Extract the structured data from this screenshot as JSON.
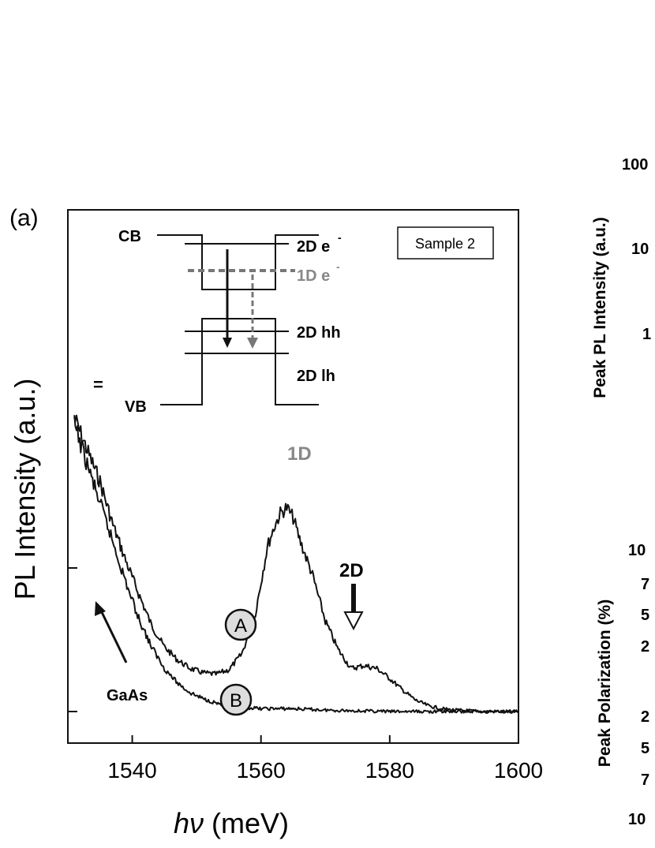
{
  "panel_label": "(a)",
  "sample_label": "Sample 2",
  "chart_data": {
    "type": "line",
    "xlabel_italic": "hν",
    "xlabel_unit": " (meV)",
    "ylabel": "PL Intensity (a.u.)",
    "xlim": [
      1530,
      1600
    ],
    "xticks": [
      "1540",
      "1560",
      "1580",
      "1600"
    ],
    "ytick_values": [
      0,
      1
    ],
    "grid": false,
    "series": [
      {
        "name": "A",
        "x": [
          1531,
          1533,
          1535,
          1537,
          1539,
          1541,
          1543,
          1545,
          1547,
          1549,
          1551,
          1553,
          1555,
          1557,
          1559,
          1560,
          1561,
          1562,
          1563,
          1564,
          1565,
          1566,
          1568,
          1570,
          1572,
          1574,
          1576,
          1578,
          1580,
          1582,
          1584,
          1586,
          1588,
          1590,
          1595,
          1600
        ],
        "y": [
          2.05,
          1.82,
          1.6,
          1.3,
          1.05,
          0.82,
          0.6,
          0.45,
          0.36,
          0.3,
          0.27,
          0.26,
          0.29,
          0.4,
          0.65,
          0.9,
          1.15,
          1.28,
          1.38,
          1.42,
          1.35,
          1.2,
          0.95,
          0.63,
          0.43,
          0.3,
          0.32,
          0.3,
          0.23,
          0.15,
          0.08,
          0.04,
          0.02,
          0.01,
          0.0,
          0.0
        ]
      },
      {
        "name": "B",
        "x": [
          1531,
          1533,
          1535,
          1537,
          1539,
          1541,
          1543,
          1545,
          1547,
          1549,
          1551,
          1553,
          1555,
          1557,
          1560,
          1565,
          1570,
          1580,
          1590,
          1600
        ],
        "y": [
          2.0,
          1.72,
          1.45,
          1.18,
          0.9,
          0.65,
          0.45,
          0.3,
          0.2,
          0.13,
          0.09,
          0.06,
          0.04,
          0.03,
          0.02,
          0.02,
          0.01,
          0.0,
          0.0,
          0.0
        ]
      }
    ],
    "annotations": {
      "peak_1d": "1D",
      "peak_2d": "2D",
      "gaas": "GaAs",
      "marker_a": "A",
      "marker_b": "B",
      "tick_mark": "="
    }
  },
  "inset": {
    "cb": "CB",
    "vb": "VB",
    "e2d": "2D e",
    "e1d": "1D e",
    "hh": "2D hh",
    "lh": "2D lh",
    "minus": "-"
  },
  "right_panel": {
    "ylabel_top": "Peak PL Intensity (a.u.)",
    "ylabel_bottom": "Peak Polarization (%)",
    "ticks_top": [
      "100",
      "10",
      "1"
    ],
    "ticks_bottom": [
      "10",
      "7",
      "5",
      "2",
      "2",
      "5",
      "7",
      "10"
    ]
  }
}
